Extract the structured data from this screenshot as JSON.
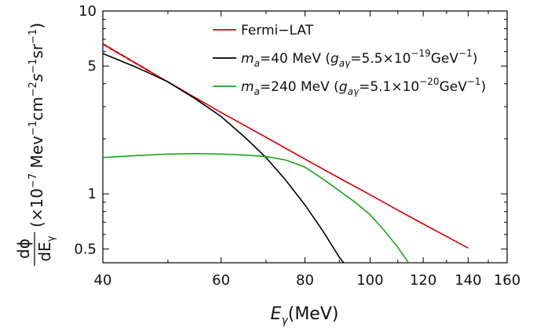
{
  "chart_data": {
    "type": "line",
    "xscale": "log",
    "yscale": "log",
    "xlim": [
      40,
      160
    ],
    "ylim": [
      0.42,
      10
    ],
    "x_ticks": [
      40,
      60,
      80,
      100,
      120,
      140,
      160
    ],
    "x_tick_labels": [
      "40",
      "60",
      "80",
      "100",
      "120",
      "140",
      "160"
    ],
    "y_ticks": [
      0.5,
      1,
      5,
      10
    ],
    "y_tick_labels": [
      "0.5",
      "1",
      "5",
      "10"
    ],
    "xlabel": {
      "var": "E",
      "sub": "γ",
      "unit": "(MeV)"
    },
    "ylabel": {
      "frac_num": "dϕ",
      "frac_den": "dE",
      "frac_den_sub": "γ",
      "prefix": "(×10",
      "exp1": "−7",
      "unit1": " Mev",
      "exp2": "−1",
      "unit2": "cm",
      "exp3": "−2",
      "unit3": "s",
      "exp4": "−1",
      "unit4": "sr",
      "exp5": "−1",
      "suffix": ")"
    },
    "legend_position": "top-right",
    "series": [
      {
        "name": "Fermi−LAT",
        "legend": [
          {
            "t": "Fermi−LAT"
          }
        ],
        "color": "#d40000",
        "dashed_segment_until_x": 47,
        "x": [
          40,
          50,
          60,
          70,
          80,
          90,
          100,
          110,
          120,
          130,
          140
        ],
        "y": [
          6.6,
          4.09,
          2.79,
          2.04,
          1.55,
          1.22,
          0.99,
          0.815,
          0.685,
          0.585,
          0.505
        ]
      },
      {
        "name": "ma=40 MeV (gaγ=5.5×10−19GeV−1)",
        "legend": [
          {
            "t": "m",
            "i": true
          },
          {
            "t": "a",
            "sub": true,
            "i": true
          },
          {
            "t": "=40 MeV ("
          },
          {
            "t": "g",
            "i": true
          },
          {
            "t": "aγ",
            "sub": true,
            "i": true
          },
          {
            "t": "=5.5×10"
          },
          {
            "t": "−19",
            "sup": true
          },
          {
            "t": "GeV"
          },
          {
            "t": "−1",
            "sup": true
          },
          {
            "t": ")"
          }
        ],
        "color": "#000000",
        "x": [
          40,
          45,
          50,
          55,
          60,
          65,
          70,
          75,
          80,
          85,
          90,
          93
        ],
        "y": [
          5.85,
          4.9,
          4.1,
          3.3,
          2.65,
          2.05,
          1.58,
          1.18,
          0.87,
          0.63,
          0.45,
          0.385
        ]
      },
      {
        "name": "ma=240 MeV (gaγ=5.1×10−20GeV−1)",
        "legend": [
          {
            "t": "m",
            "i": true
          },
          {
            "t": "a",
            "sub": true,
            "i": true
          },
          {
            "t": "=240 MeV ("
          },
          {
            "t": "g",
            "i": true
          },
          {
            "t": "aγ",
            "sub": true,
            "i": true
          },
          {
            "t": "=5.1×10"
          },
          {
            "t": "−20",
            "sup": true
          },
          {
            "t": "GeV"
          },
          {
            "t": "−1",
            "sup": true
          },
          {
            "t": ")"
          }
        ],
        "color": "#1aa31a",
        "x": [
          40,
          45,
          50,
          55,
          60,
          65,
          70,
          75,
          80,
          85,
          90,
          95,
          100,
          105,
          110,
          116
        ],
        "y": [
          1.58,
          1.62,
          1.65,
          1.66,
          1.65,
          1.63,
          1.6,
          1.53,
          1.4,
          1.21,
          1.04,
          0.9,
          0.77,
          0.63,
          0.51,
          0.385
        ]
      }
    ]
  }
}
